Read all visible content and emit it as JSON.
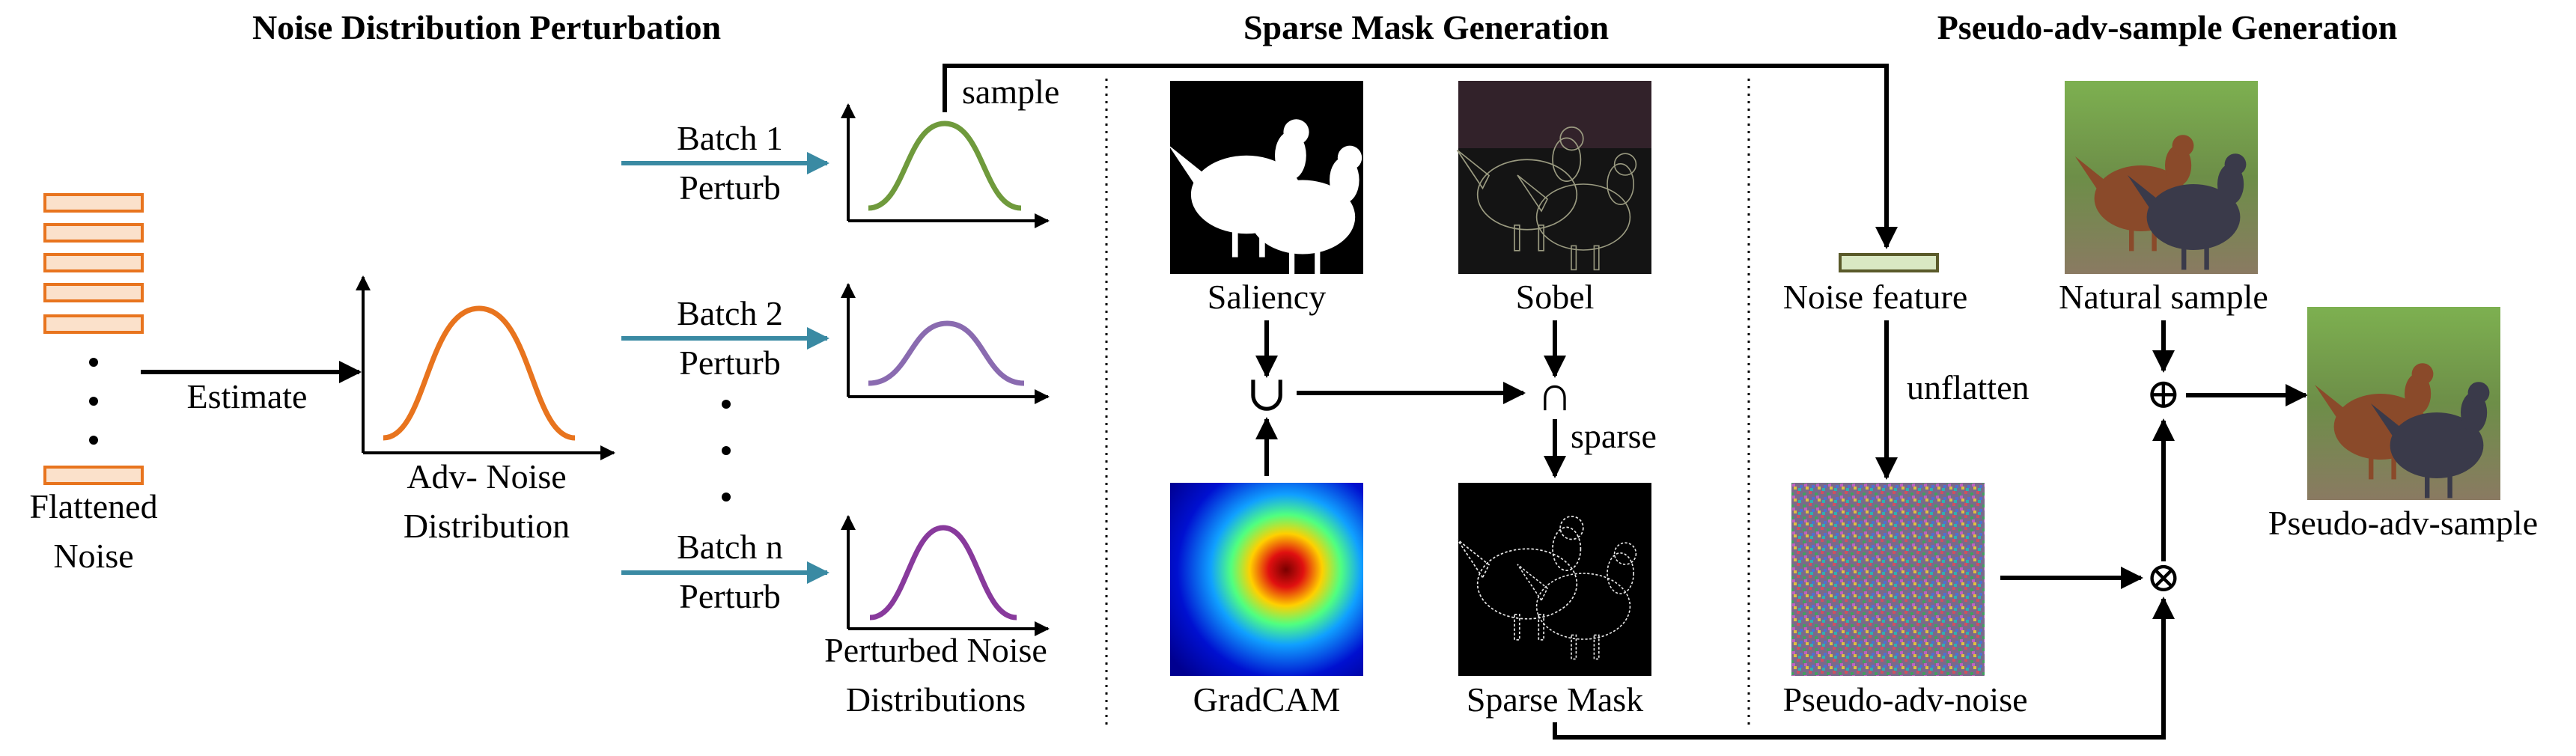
{
  "headings": {
    "noise_distribution": "Noise Distribution Perturbation",
    "sparse_mask": "Sparse Mask Generation",
    "pseudo_adv": "Pseudo-adv-sample Generation"
  },
  "labels": {
    "flattened_1": "Flattened",
    "flattened_2": "Noise",
    "estimate": "Estimate",
    "adv_noise_1": "Adv- Noise",
    "adv_noise_2": "Distribution",
    "sample": "sample",
    "batch1_1": "Batch 1",
    "batch1_2": "Perturb",
    "batch2_1": "Batch 2",
    "batch2_2": "Perturb",
    "batchn_1": "Batch n",
    "batchn_2": "Perturb",
    "perturbed_1": "Perturbed Noise",
    "perturbed_2": "Distributions",
    "saliency": "Saliency",
    "sobel": "Sobel",
    "gradcam": "GradCAM",
    "sparse_mask": "Sparse Mask",
    "sparse": "sparse",
    "noise_feature": "Noise feature",
    "unflatten": "unflatten",
    "natural_sample": "Natural sample",
    "pseudo_adv_noise": "Pseudo-adv-noise",
    "pseudo_adv_sample": "Pseudo-adv-sample"
  },
  "symbols": {
    "union": "∪",
    "intersection": "∩",
    "add": "⊕",
    "multiply": "⊗"
  },
  "colors": {
    "noise_bar_fill": "#fbe1cb",
    "noise_bar_stroke": "#e8741e",
    "adv_curve": "#e8741e",
    "batch1_curve": "#6f9a3c",
    "batch2_curve": "#8a6bb0",
    "batchn_curve": "#883a9c",
    "batch_arrow": "#3a8aa3",
    "noise_feature_fill": "#d9e8c3",
    "noise_feature_stroke": "#5a5a2a"
  }
}
